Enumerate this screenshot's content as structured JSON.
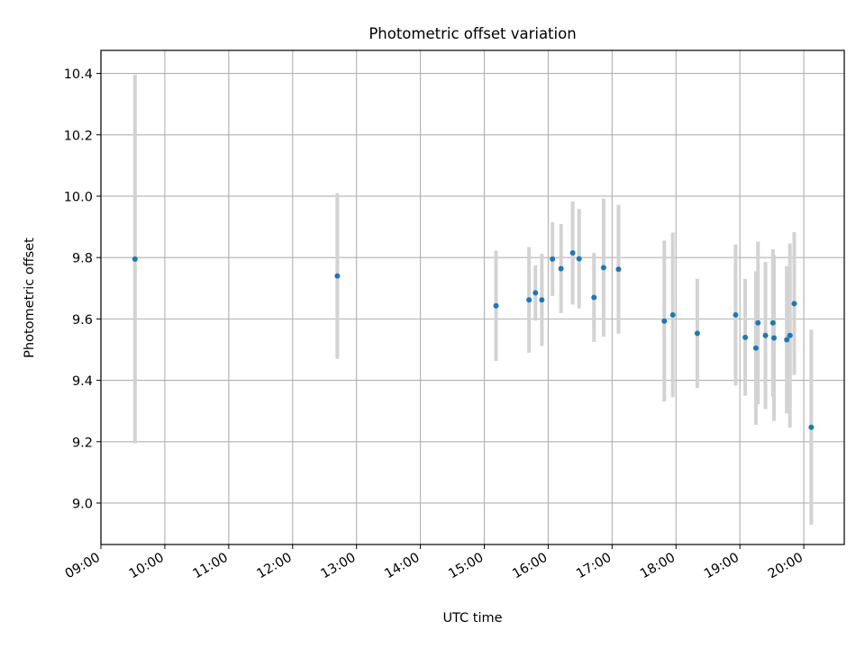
{
  "chart_data": {
    "type": "scatter",
    "title": "Photometric offset variation",
    "xlabel": "UTC time",
    "ylabel": "Photometric offset",
    "x_ticks": [
      "09:00",
      "10:00",
      "11:00",
      "12:00",
      "13:00",
      "14:00",
      "15:00",
      "16:00",
      "17:00",
      "18:00",
      "19:00",
      "20:00"
    ],
    "y_ticks": [
      "9.0",
      "9.2",
      "9.4",
      "9.6",
      "9.8",
      "10.0",
      "10.2",
      "10.4"
    ],
    "xlim": [
      "09:00",
      "20:38"
    ],
    "ylim": [
      8.865,
      10.475
    ],
    "grid": true,
    "colors": {
      "point": "#1f77b4",
      "errorbar": "#d3d3d3",
      "grid": "#b0b0b0"
    },
    "points": [
      {
        "x": "09:32",
        "y": 9.795,
        "err": 0.6
      },
      {
        "x": "12:42",
        "y": 9.74,
        "err": 0.27
      },
      {
        "x": "15:11",
        "y": 9.643,
        "err": 0.18
      },
      {
        "x": "15:42",
        "y": 9.662,
        "err": 0.172
      },
      {
        "x": "15:48",
        "y": 9.685,
        "err": 0.09
      },
      {
        "x": "15:54",
        "y": 9.662,
        "err": 0.15
      },
      {
        "x": "16:04",
        "y": 9.795,
        "err": 0.12
      },
      {
        "x": "16:12",
        "y": 9.764,
        "err": 0.145
      },
      {
        "x": "16:23",
        "y": 9.815,
        "err": 0.168
      },
      {
        "x": "16:29",
        "y": 9.796,
        "err": 0.162
      },
      {
        "x": "16:43",
        "y": 9.67,
        "err": 0.145
      },
      {
        "x": "16:52",
        "y": 9.767,
        "err": 0.225
      },
      {
        "x": "17:06",
        "y": 9.762,
        "err": 0.21
      },
      {
        "x": "17:49",
        "y": 9.593,
        "err": 0.262
      },
      {
        "x": "17:57",
        "y": 9.613,
        "err": 0.268
      },
      {
        "x": "18:20",
        "y": 9.553,
        "err": 0.178
      },
      {
        "x": "18:56",
        "y": 9.613,
        "err": 0.23
      },
      {
        "x": "19:05",
        "y": 9.54,
        "err": 0.19
      },
      {
        "x": "19:15",
        "y": 9.505,
        "err": 0.25
      },
      {
        "x": "19:17",
        "y": 9.587,
        "err": 0.265
      },
      {
        "x": "19:24",
        "y": 9.546,
        "err": 0.24
      },
      {
        "x": "19:31",
        "y": 9.587,
        "err": 0.24
      },
      {
        "x": "19:32",
        "y": 9.538,
        "err": 0.27
      },
      {
        "x": "19:44",
        "y": 9.532,
        "err": 0.24
      },
      {
        "x": "19:47",
        "y": 9.546,
        "err": 0.3
      },
      {
        "x": "19:51",
        "y": 9.65,
        "err": 0.233
      },
      {
        "x": "20:07",
        "y": 9.247,
        "err": 0.318
      }
    ]
  }
}
